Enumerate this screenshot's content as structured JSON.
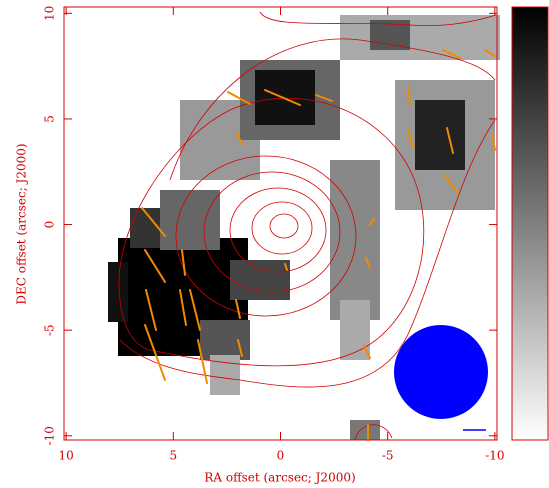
{
  "chart_data": {
    "type": "map",
    "xlabel": "RA offset (arcsec; J2000)",
    "ylabel": "DEC offset (arcsec; J2000)",
    "xlim": [
      10.1,
      -10.1
    ],
    "ylim": [
      -10.2,
      10.3
    ],
    "xticks": [
      10,
      5,
      0,
      -5,
      -10
    ],
    "yticks": [
      -10,
      -5,
      0,
      5,
      10
    ],
    "axis_color": "#d40000"
  }
}
